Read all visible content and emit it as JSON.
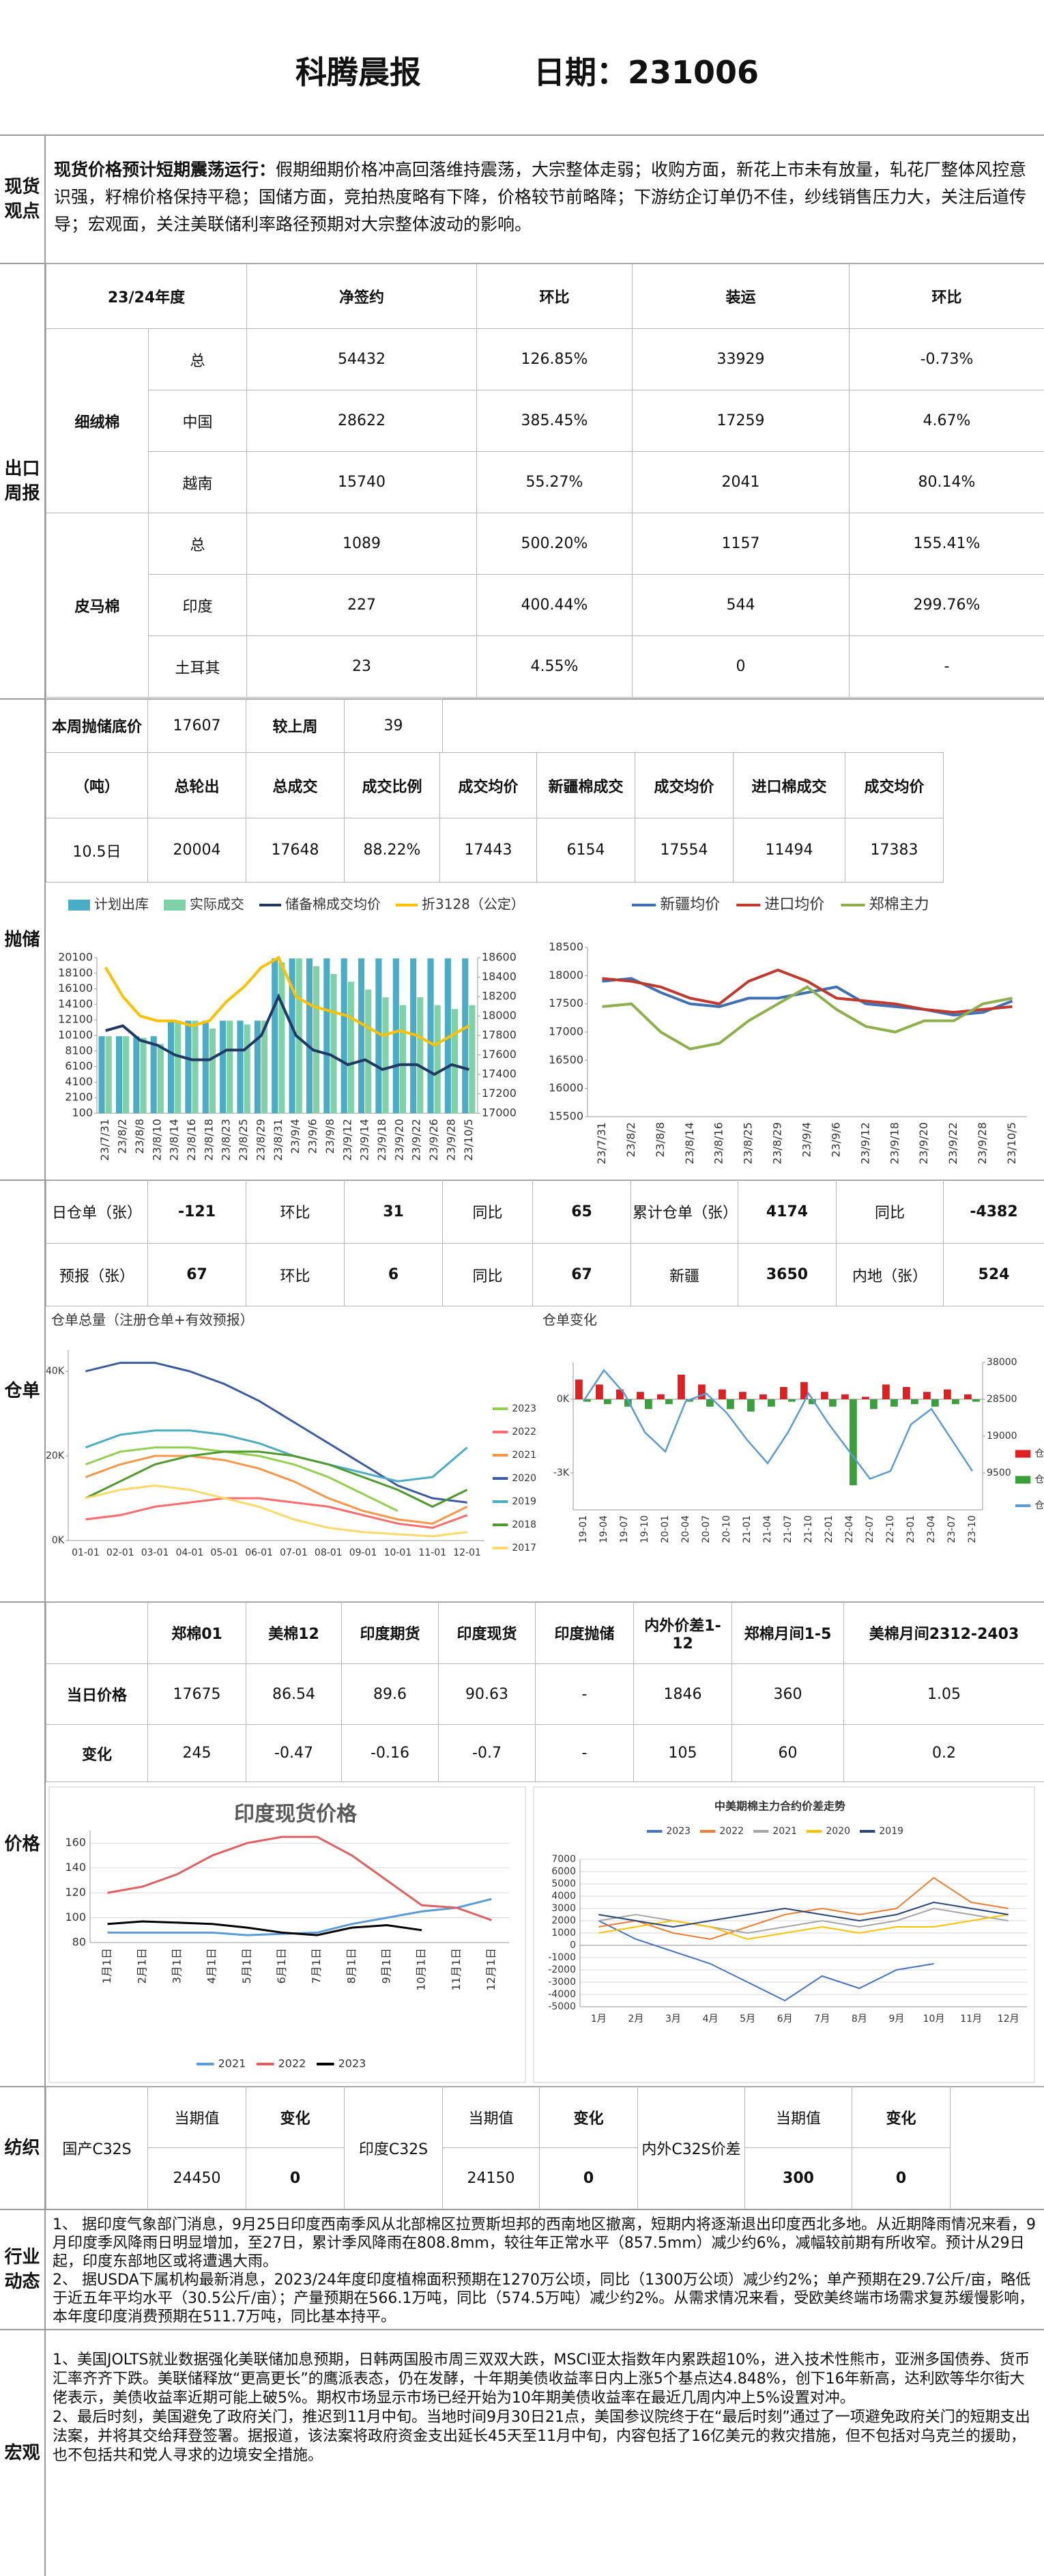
{
  "header": {
    "title": "科腾晨报",
    "date": "日期：231006"
  },
  "spot_view": {
    "label": "现货观点",
    "lead": "现货价格预计短期震荡运行：",
    "text": "假期细期价格冲高回落维持震荡，大宗整体走弱；收购方面，新花上市未有放量，轧花厂整体风控意识强，籽棉价格保持平稳；国储方面，竞拍热度略有下降，价格较节前略降；下游纺企订单仍不佳，纱线销售压力大，关注后道传导；宏观面，关注美联储利率路径预期对大宗整体波动的影响。"
  },
  "export_weekly": {
    "label": "出口周报",
    "columns": [
      "23/24年度",
      "净签约",
      "环比",
      "装运",
      "环比"
    ],
    "groups": [
      {
        "name": "细绒棉",
        "rows": [
          [
            "总",
            "54432",
            "126.85%",
            "33929",
            "-0.73%"
          ],
          [
            "中国",
            "28622",
            "385.45%",
            "17259",
            "4.67%"
          ],
          [
            "越南",
            "15740",
            "55.27%",
            "2041",
            "80.14%"
          ]
        ]
      },
      {
        "name": "皮马棉",
        "rows": [
          [
            "总",
            "1089",
            "500.20%",
            "1157",
            "155.41%"
          ],
          [
            "印度",
            "227",
            "400.44%",
            "544",
            "299.76%"
          ],
          [
            "土耳其",
            "23",
            "4.55%",
            "0",
            "-"
          ]
        ]
      }
    ]
  },
  "reserve": {
    "label": "抛储",
    "base_price_label": "本周抛储底价",
    "base_price": "17607",
    "vs_label": "较上周",
    "vs": "39",
    "columns": [
      "（吨）",
      "总轮出",
      "总成交",
      "成交比例",
      "成交均价",
      "新疆棉成交",
      "成交均价",
      "进口棉成交",
      "成交均价"
    ],
    "row": [
      "10.5日",
      "20004",
      "17648",
      "88.22%",
      "17443",
      "6154",
      "17554",
      "11494",
      "17383"
    ]
  },
  "warehouse": {
    "label": "仓单",
    "rows": [
      [
        "日仓单（张）",
        "-121",
        "环比",
        "31",
        "同比",
        "65",
        "累计仓单（张）",
        "4174",
        "同比",
        "-4382"
      ],
      [
        "预报（张）",
        "67",
        "环比",
        "6",
        "同比",
        "67",
        "新疆",
        "3650",
        "内地（张）",
        "524"
      ]
    ]
  },
  "price": {
    "label": "价格",
    "columns": [
      "郑棉01",
      "美棉12",
      "印度期货",
      "印度现货",
      "印度抛储",
      "内外价差1-12",
      "郑棉月间1-5",
      "美棉月间2312-2403"
    ],
    "rows": [
      [
        "当日价格",
        "17675",
        "86.54",
        "89.6",
        "90.63",
        "-",
        "1846",
        "360",
        "1.05"
      ],
      [
        "变化",
        "245",
        "-0.47",
        "-0.16",
        "-0.7",
        "-",
        "105",
        "60",
        "0.2"
      ]
    ]
  },
  "textile": {
    "label": "纺织",
    "items": [
      {
        "name": "国产C32S",
        "current_label": "当期值",
        "current": "24450",
        "change_label": "变化",
        "change": "0"
      },
      {
        "name": "印度C32S",
        "current_label": "当期值",
        "current": "24150",
        "change_label": "变化",
        "change": "0"
      },
      {
        "name": "内外C32S价差",
        "current_label": "当期值",
        "current": "300",
        "change_label": "变化",
        "change": "0"
      }
    ]
  },
  "industry": {
    "label": "行业动态",
    "paragraphs": [
      "1、  据印度气象部门消息，9月25日印度西南季风从北部棉区拉贾斯坦邦的西南地区撤离，短期内将逐渐退出印度西北多地。从近期降雨情况来看，9月印度季风降雨日明显增加，至27日，累计季风降雨在808.8mm，较往年正常水平（857.5mm）减少约6%，减幅较前期有所收窄。预计从29日起，印度东部地区或将遭遇大雨。",
      "2、  据USDA下属机构最新消息，2023/24年度印度植棉面积预期在1270万公顷，同比（1300万公顷）减少约2%；单产预期在29.7公斤/亩，略低于近五年平均水平（30.5公斤/亩）；产量预期在566.1万吨，同比（574.5万吨）减少约2%。从需求情况来看，受欧美终端市场需求复苏缓慢影响，本年度印度消费预期在511.7万吨，同比基本持平。"
    ]
  },
  "macro": {
    "label": "宏观",
    "paragraphs": [
      "1、美国JOLTS就业数据强化美联储加息预期，日韩两国股市周三双双大跌，MSCI亚太指数年内累跌超10%，进入技术性熊市，亚洲多国债券、货币汇率齐齐下跌。美联储释放“更高更长”的鹰派表态，仍在发酵，十年期美债收益率日内上涨5个基点达4.848%，创下16年新高，达利欧等华尔街大佬表示，美债收益率近期可能上破5%。期权市场显示市场已经开始为10年期美债收益率在最近几周内冲上5%设置对冲。",
      "2、最后时刻，美国避免了政府关门，推迟到11月中旬。当地时间9月30日21点，美国参议院终于在“最后时刻”通过了一项避免政府关门的短期支出法案，并将其交给拜登签署。据报道，该法案将政府资金支出延长45天至11月中旬，内容包括了16亿美元的救灾措施，但不包括对乌克兰的援助，也不包括共和党人寻求的边境安全措施。"
    ]
  },
  "chart_data": [
    {
      "type": "bar",
      "legend": "top",
      "grid": false,
      "categories": [
        "23/7/31",
        "23/8/2",
        "23/8/8",
        "23/8/10",
        "23/8/14",
        "23/8/16",
        "23/8/18",
        "23/8/23",
        "23/8/25",
        "23/8/29",
        "23/8/31",
        "23/9/4",
        "23/9/6",
        "23/9/8",
        "23/9/12",
        "23/9/14",
        "23/9/18",
        "23/9/20",
        "23/9/22",
        "23/9/26",
        "23/9/28",
        "23/10/5"
      ],
      "ylim": [
        100,
        20100
      ],
      "yticks": [
        100,
        2100,
        4100,
        6100,
        8100,
        10100,
        12100,
        14100,
        16100,
        18100,
        20100
      ],
      "y2lim": [
        17000,
        18600
      ],
      "y2ticks": [
        17000,
        17200,
        17400,
        17600,
        17800,
        18000,
        18200,
        18400,
        18600
      ],
      "series": [
        {
          "name": "计划出库",
          "type": "bar",
          "color": "#4bacc6",
          "values": [
            10000,
            10000,
            10000,
            10000,
            12000,
            12000,
            12000,
            12000,
            12000,
            12000,
            20000,
            20000,
            20000,
            20000,
            20000,
            20000,
            20000,
            20000,
            20000,
            20000,
            20000,
            20000
          ]
        },
        {
          "name": "实际成交",
          "type": "bar",
          "color": "#7fd1a8",
          "values": [
            10000,
            10000,
            9800,
            9000,
            12000,
            12000,
            11000,
            12000,
            11500,
            12000,
            19500,
            20000,
            19000,
            18000,
            17000,
            16000,
            15000,
            14000,
            15000,
            14000,
            13500,
            14000
          ]
        },
        {
          "name": "储备棉成交均价",
          "type": "line",
          "axis": "y2",
          "color": "#1f3864",
          "values": [
            17850,
            17900,
            17750,
            17700,
            17600,
            17550,
            17550,
            17650,
            17650,
            17800,
            18200,
            17800,
            17650,
            17600,
            17500,
            17550,
            17450,
            17500,
            17500,
            17400,
            17500,
            17450
          ]
        },
        {
          "name": "折3128（公定）",
          "type": "line",
          "axis": "y2",
          "color": "#ffc000",
          "values": [
            18500,
            18200,
            18000,
            17950,
            17950,
            17900,
            17950,
            18150,
            18300,
            18500,
            18600,
            18200,
            18100,
            18050,
            18000,
            17900,
            17800,
            17850,
            17800,
            17700,
            17800,
            17900
          ]
        }
      ]
    },
    {
      "type": "line",
      "legend": "top",
      "grid": false,
      "categories": [
        "23/7/31",
        "23/8/2",
        "23/8/8",
        "23/8/14",
        "23/8/16",
        "23/8/25",
        "23/8/29",
        "23/9/4",
        "23/9/6",
        "23/9/12",
        "23/9/18",
        "23/9/20",
        "23/9/22",
        "23/9/28",
        "23/10/5"
      ],
      "ylim": [
        15500,
        18500
      ],
      "yticks": [
        15500,
        16000,
        16500,
        17000,
        17500,
        18000,
        18500
      ],
      "series": [
        {
          "name": "新疆均价",
          "color": "#3f6fb5",
          "values": [
            17900,
            17950,
            17700,
            17500,
            17450,
            17600,
            17600,
            17700,
            17800,
            17500,
            17450,
            17400,
            17300,
            17350,
            17550
          ]
        },
        {
          "name": "进口均价",
          "color": "#c0392b",
          "values": [
            17950,
            17900,
            17800,
            17600,
            17500,
            17900,
            18100,
            17900,
            17600,
            17550,
            17500,
            17400,
            17350,
            17400,
            17450
          ]
        },
        {
          "name": "郑棉主力",
          "color": "#8db04a",
          "values": [
            17450,
            17500,
            17000,
            16700,
            16800,
            17200,
            17500,
            17800,
            17400,
            17100,
            17000,
            17200,
            17200,
            17500,
            17600
          ]
        }
      ]
    },
    {
      "type": "line",
      "title": "仓单总量（注册仓单+有效预报）",
      "legend": "right",
      "grid": false,
      "categories": [
        "01-01",
        "02-01",
        "03-01",
        "04-01",
        "05-01",
        "06-01",
        "07-01",
        "08-01",
        "09-01",
        "10-01",
        "11-01",
        "12-01"
      ],
      "ylim": [
        0,
        45000
      ],
      "yticks": [
        {
          "value": 0,
          "label": "0K"
        },
        {
          "value": 20000,
          "label": "20K"
        },
        {
          "value": 40000,
          "label": "40K"
        }
      ],
      "series": [
        {
          "name": "2023",
          "color": "#92d050",
          "values": [
            18000,
            21000,
            22000,
            22000,
            21000,
            20000,
            18000,
            15000,
            11000,
            7000,
            null,
            null
          ]
        },
        {
          "name": "2022",
          "color": "#ff6b6b",
          "values": [
            5000,
            6000,
            8000,
            9000,
            10000,
            10000,
            9000,
            8000,
            6000,
            4000,
            3000,
            6000
          ]
        },
        {
          "name": "2021",
          "color": "#f79646",
          "values": [
            15000,
            18000,
            20000,
            20000,
            19000,
            17000,
            14000,
            10000,
            7000,
            5000,
            4000,
            8000
          ]
        },
        {
          "name": "2020",
          "color": "#3a5ba0",
          "values": [
            40000,
            42000,
            42000,
            40000,
            37000,
            33000,
            28000,
            23000,
            18000,
            13000,
            10000,
            9000
          ]
        },
        {
          "name": "2019",
          "color": "#4bacc6",
          "values": [
            22000,
            25000,
            26000,
            26000,
            25000,
            23000,
            20000,
            18000,
            16000,
            14000,
            15000,
            22000
          ]
        },
        {
          "name": "2018",
          "color": "#4c9a2a",
          "values": [
            10000,
            14000,
            18000,
            20000,
            21000,
            21000,
            20000,
            18000,
            15000,
            12000,
            8000,
            12000
          ]
        },
        {
          "name": "2017",
          "color": "#ffd966",
          "values": [
            10000,
            12000,
            13000,
            12000,
            10000,
            8000,
            5000,
            3000,
            2000,
            1500,
            1000,
            2000
          ]
        }
      ]
    },
    {
      "type": "bar",
      "title": "仓单变化",
      "legend": "right",
      "grid": false,
      "categories": [
        "19-01",
        "19-04",
        "19-07",
        "19-10",
        "20-01",
        "20-04",
        "20-07",
        "20-10",
        "21-01",
        "21-04",
        "21-07",
        "21-10",
        "22-01",
        "22-04",
        "22-07",
        "22-10",
        "23-01",
        "23-04",
        "23-07",
        "23-10"
      ],
      "ylim": [
        -4500,
        1500
      ],
      "yticks": [
        {
          "value": -3000,
          "label": "-3K"
        },
        {
          "value": 0,
          "label": "0K"
        }
      ],
      "y2lim": [
        0,
        38000
      ],
      "y2ticks": [
        9500,
        19000,
        28500,
        38000
      ],
      "series": [
        {
          "name": "仓入",
          "type": "bar",
          "color": "#e02020",
          "values": [
            800,
            600,
            400,
            300,
            200,
            1000,
            600,
            400,
            300,
            200,
            500,
            700,
            300,
            200,
            100,
            600,
            500,
            300,
            400,
            200
          ]
        },
        {
          "name": "仓出",
          "type": "bar",
          "color": "#3aa13a",
          "values": [
            -100,
            -200,
            -300,
            -400,
            -200,
            -100,
            -300,
            -400,
            -500,
            -300,
            -100,
            -200,
            -300,
            -3500,
            -400,
            -300,
            -200,
            -300,
            -200,
            -100
          ]
        },
        {
          "name": "仓单",
          "type": "line",
          "axis": "y2",
          "color": "#5b9bd5",
          "values": [
            28000,
            36000,
            30000,
            20000,
            15000,
            28000,
            30000,
            25000,
            18000,
            12000,
            20000,
            30000,
            22000,
            15000,
            8000,
            10000,
            22000,
            26000,
            18000,
            10000
          ]
        }
      ]
    },
    {
      "type": "line",
      "title": "印度现货价格",
      "legend": "bottom",
      "grid": true,
      "categories": [
        "1月1日",
        "2月1日",
        "3月1日",
        "4月1日",
        "5月1日",
        "6月1日",
        "7月1日",
        "8月1日",
        "9月1日",
        "10月1日",
        "11月1日",
        "12月1日"
      ],
      "ylim": [
        80,
        170
      ],
      "yticks": [
        80,
        100,
        120,
        140,
        160
      ],
      "series": [
        {
          "name": "2021",
          "color": "#5b9bd5",
          "values": [
            88,
            88,
            88,
            88,
            86,
            87,
            88,
            95,
            100,
            105,
            108,
            115
          ]
        },
        {
          "name": "2022",
          "color": "#e06060",
          "values": [
            120,
            125,
            135,
            150,
            160,
            165,
            165,
            150,
            130,
            110,
            108,
            98
          ]
        },
        {
          "name": "2023",
          "color": "#000000",
          "values": [
            95,
            97,
            96,
            95,
            92,
            88,
            86,
            92,
            94,
            90,
            null,
            null
          ]
        }
      ]
    },
    {
      "type": "line",
      "title": "中美期棉主力合约价差走势",
      "legend": "top",
      "grid": true,
      "categories": [
        "1月",
        "2月",
        "3月",
        "4月",
        "5月",
        "6月",
        "7月",
        "8月",
        "9月",
        "10月",
        "11月",
        "12月"
      ],
      "ylim": [
        -5000,
        7000
      ],
      "yticks": [
        -5000,
        -4000,
        -3000,
        -2000,
        -1000,
        0,
        1000,
        2000,
        3000,
        4000,
        5000,
        6000,
        7000
      ],
      "series": [
        {
          "name": "2023",
          "color": "#4472c4",
          "values": [
            2000,
            500,
            -500,
            -1500,
            -3000,
            -4500,
            -2500,
            -3500,
            -2000,
            -1500,
            null,
            null
          ]
        },
        {
          "name": "2022",
          "color": "#ed7d31",
          "values": [
            1500,
            2000,
            1000,
            500,
            1500,
            2500,
            3000,
            2500,
            3000,
            5500,
            3500,
            3000
          ]
        },
        {
          "name": "2021",
          "color": "#a5a5a5",
          "values": [
            2000,
            2500,
            2000,
            1500,
            1000,
            1500,
            2000,
            1500,
            2000,
            3000,
            2500,
            2000
          ]
        },
        {
          "name": "2020",
          "color": "#ffc000",
          "values": [
            1000,
            1500,
            2000,
            1500,
            500,
            1000,
            1500,
            1000,
            1500,
            1500,
            2000,
            2500
          ]
        },
        {
          "name": "2019",
          "color": "#264478",
          "values": [
            2500,
            2000,
            1500,
            2000,
            2500,
            3000,
            2500,
            2000,
            2500,
            3500,
            3000,
            2500
          ]
        }
      ]
    }
  ]
}
